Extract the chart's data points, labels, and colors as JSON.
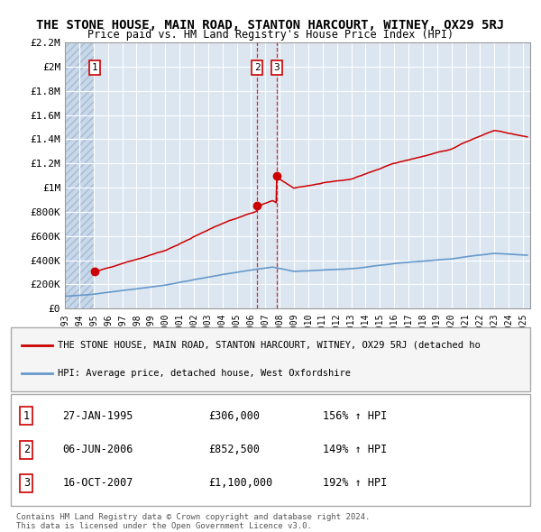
{
  "title": "THE STONE HOUSE, MAIN ROAD, STANTON HARCOURT, WITNEY, OX29 5RJ",
  "subtitle": "Price paid vs. HM Land Registry's House Price Index (HPI)",
  "title_fontsize": 10.5,
  "subtitle_fontsize": 9.5,
  "ylim": [
    0,
    2200000
  ],
  "yticks": [
    0,
    200000,
    400000,
    600000,
    800000,
    1000000,
    1200000,
    1400000,
    1600000,
    1800000,
    2000000,
    2200000
  ],
  "ytick_labels": [
    "£0",
    "£200K",
    "£400K",
    "£600K",
    "£800K",
    "£1M",
    "£1.2M",
    "£1.4M",
    "£1.6M",
    "£1.8M",
    "£2M",
    "£2.2M"
  ],
  "xlim_start": 1993.0,
  "xlim_end": 2025.5,
  "background_color": "#dce6f1",
  "hatch_color": "#b8cce4",
  "plot_bg": "#dce6f1",
  "grid_color": "#ffffff",
  "red_line_color": "#cc0000",
  "blue_line_color": "#6699cc",
  "sale_marker_color": "#cc0000",
  "sales": [
    {
      "num": 1,
      "year": 1995.07,
      "price": 306000,
      "label": "27-JAN-1995",
      "amount": "£306,000",
      "hpi_pct": "156% ↑ HPI"
    },
    {
      "num": 2,
      "year": 2006.43,
      "price": 852500,
      "label": "06-JUN-2006",
      "amount": "£852,500",
      "hpi_pct": "149% ↑ HPI"
    },
    {
      "num": 3,
      "year": 2007.79,
      "price": 1100000,
      "label": "16-OCT-2007",
      "amount": "£1,100,000",
      "hpi_pct": "192% ↑ HPI"
    }
  ],
  "legend_line1": "THE STONE HOUSE, MAIN ROAD, STANTON HARCOURT, WITNEY, OX29 5RJ (detached ho",
  "legend_line2": "HPI: Average price, detached house, West Oxfordshire",
  "footer1": "Contains HM Land Registry data © Crown copyright and database right 2024.",
  "footer2": "This data is licensed under the Open Government Licence v3.0.",
  "hatch_end_year": 1995.07,
  "dashed_lines": [
    2006.43,
    2007.79
  ]
}
